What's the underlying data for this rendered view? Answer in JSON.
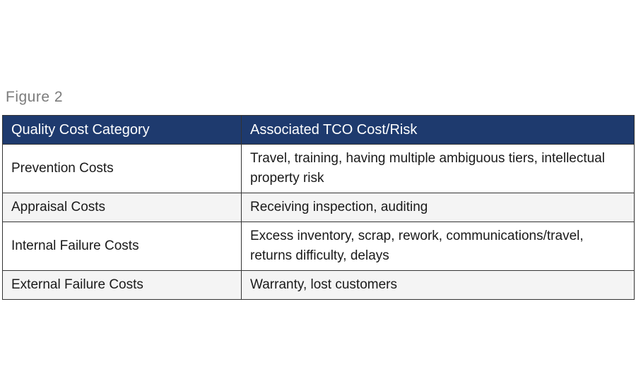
{
  "figure": {
    "label": "Figure 2"
  },
  "table": {
    "header": {
      "col1": "Quality Cost Category",
      "col2": "Associated TCO Cost/Risk"
    },
    "rows": [
      {
        "category": "Prevention Costs",
        "cost": "Travel, training, having multiple ambiguous tiers, intellectual property risk"
      },
      {
        "category": "Appraisal Costs",
        "cost": "Receiving inspection, auditing"
      },
      {
        "category": "Internal Failure Costs",
        "cost": "Excess inventory, scrap, rework, communications/travel, returns difficulty, delays"
      },
      {
        "category": "External Failure Costs",
        "cost": "Warranty, lost customers"
      }
    ]
  },
  "colors": {
    "header_bg": "#1e3a6e",
    "header_text": "#ffffff",
    "alt_row_bg": "#f4f4f4",
    "border": "#333333",
    "figure_label": "#7b7b7b"
  }
}
